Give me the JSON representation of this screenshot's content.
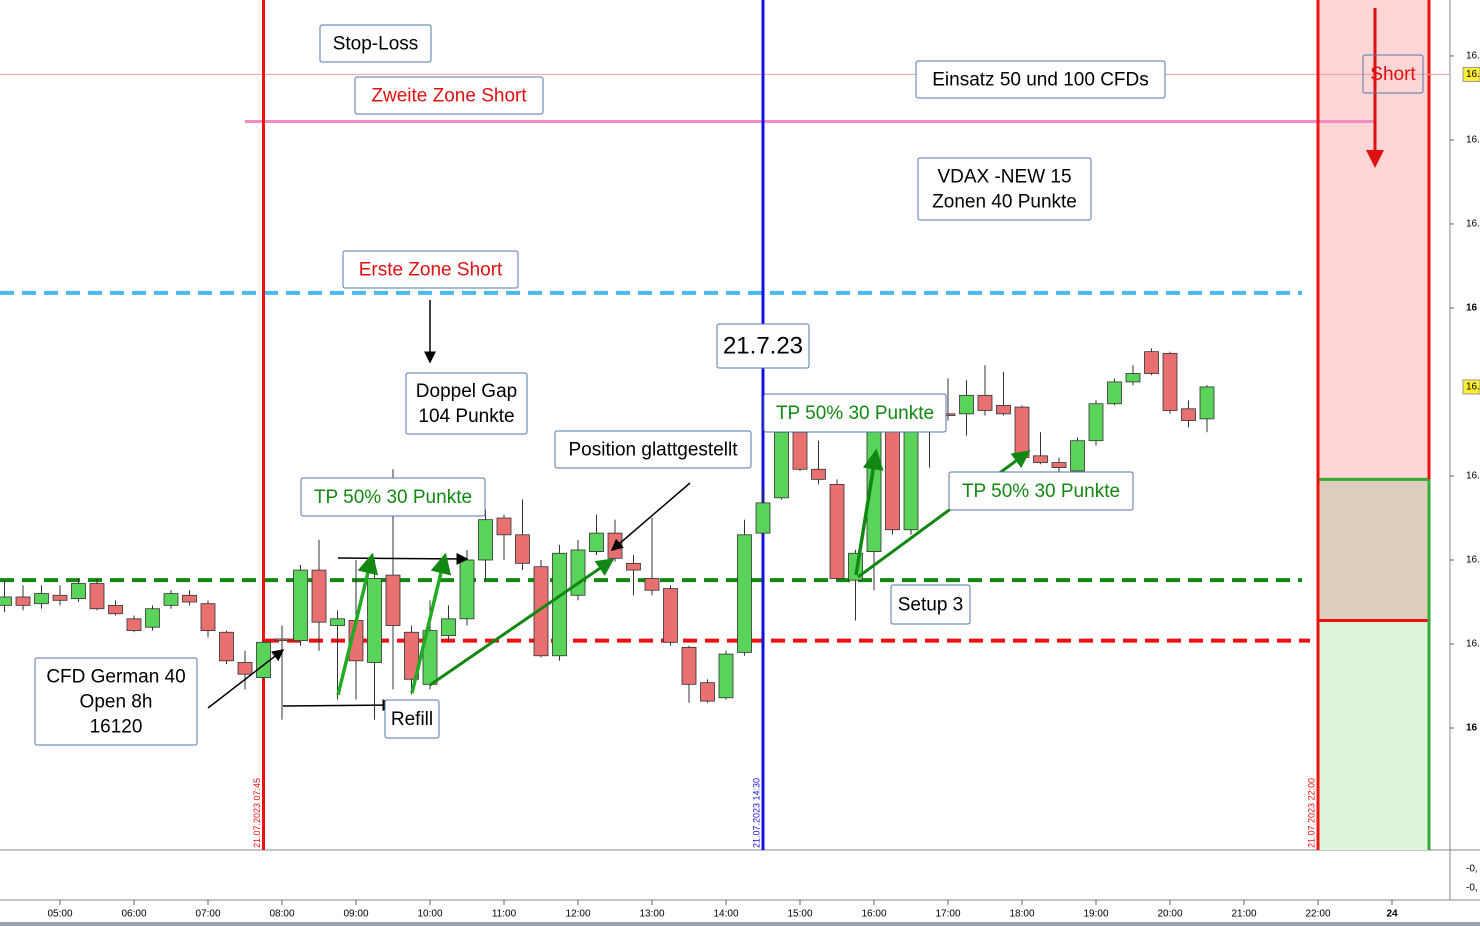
{
  "chart_data": {
    "type": "candlestick",
    "ylim": [
      15977.4,
      16483.3
    ],
    "yticks": [
      {
        "value": 16450,
        "label": "16."
      },
      {
        "value": 16400,
        "label": "16."
      },
      {
        "value": 16350,
        "label": "16."
      },
      {
        "value": 16300,
        "label": "16"
      },
      {
        "value": 16200,
        "label": "16."
      },
      {
        "value": 16150,
        "label": "16."
      },
      {
        "value": 16100,
        "label": "16."
      },
      {
        "value": 16050,
        "label": "16"
      }
    ],
    "price_tags": [
      {
        "value": 16439,
        "label": "16."
      },
      {
        "value": 16253,
        "label": "16."
      }
    ],
    "xlim": [
      4.19,
      24.2
    ],
    "xticks": [
      {
        "value": 5,
        "label": "05:00"
      },
      {
        "value": 6,
        "label": "06:00"
      },
      {
        "value": 7,
        "label": "07:00"
      },
      {
        "value": 8,
        "label": "08:00"
      },
      {
        "value": 9,
        "label": "09:00"
      },
      {
        "value": 10,
        "label": "10:00"
      },
      {
        "value": 11,
        "label": "11:00"
      },
      {
        "value": 12,
        "label": "12:00"
      },
      {
        "value": 13,
        "label": "13:00"
      },
      {
        "value": 14,
        "label": "14:00"
      },
      {
        "value": 15,
        "label": "15:00"
      },
      {
        "value": 16,
        "label": "16:00"
      },
      {
        "value": 17,
        "label": "17:00"
      },
      {
        "value": 18,
        "label": "18:00"
      },
      {
        "value": 19,
        "label": "19:00"
      },
      {
        "value": 20,
        "label": "20:00"
      },
      {
        "value": 21,
        "label": "21:00"
      },
      {
        "value": 22,
        "label": "22:00"
      },
      {
        "value": 23,
        "label": "24"
      }
    ],
    "up_color": "#5ad35a",
    "down_color": "#e87070",
    "x": [
      4.25,
      4.5,
      4.75,
      5,
      5.25,
      5.5,
      5.75,
      6,
      6.25,
      6.5,
      6.75,
      7,
      7.25,
      7.5,
      7.75,
      8,
      8.25,
      8.5,
      8.75,
      9,
      9.25,
      9.5,
      9.75,
      10,
      10.25,
      10.5,
      10.75,
      11,
      11.25,
      11.5,
      11.75,
      12,
      12.25,
      12.5,
      12.75,
      13,
      13.25,
      13.5,
      13.75,
      14,
      14.25,
      14.5,
      14.75,
      15,
      15.25,
      15.5,
      15.75,
      16,
      16.25,
      16.5,
      16.75,
      17,
      17.25,
      17.5,
      17.75,
      18,
      18.25,
      18.5,
      18.75,
      19,
      19.25,
      19.5,
      19.75,
      20,
      20.25,
      20.5
    ],
    "open": [
      16123,
      16128,
      16124,
      16129,
      16127,
      16136,
      16123,
      16115,
      16110,
      16123,
      16129,
      16124,
      16107,
      16089,
      16080,
      16103,
      16102,
      16144,
      16111,
      16114,
      16089,
      16141,
      16107,
      16076,
      16105,
      16115,
      16150,
      16175,
      16165,
      16146,
      16093,
      16129,
      16155,
      16166,
      16148,
      16139,
      16133,
      16098,
      16077,
      16068,
      16095,
      16166,
      16187,
      16226,
      16204,
      16195,
      16138,
      16155,
      16227,
      16168,
      16229,
      16237,
      16237,
      16248,
      16242,
      16241,
      16212,
      16208,
      16203,
      16221,
      16243,
      16256,
      16274,
      16273,
      16240,
      16234
    ],
    "close": [
      16128,
      16123,
      16130,
      16126,
      16136,
      16121,
      16118,
      16108,
      16121,
      16130,
      16125,
      16108,
      16090,
      16082,
      16101,
      16102,
      16144,
      16113,
      16115,
      16090,
      16139,
      16111,
      16079,
      16108,
      16115,
      16150,
      16174,
      16165,
      16148,
      16093,
      16154,
      16156,
      16166,
      16151,
      16144,
      16132,
      16101,
      16076,
      16066,
      16094,
      16165,
      16184,
      16226,
      16204,
      16198,
      16139,
      16154,
      16227,
      16168,
      16227,
      16237,
      16236,
      16248,
      16239,
      16237,
      16211,
      16208,
      16205,
      16221,
      16243,
      16256,
      16261,
      16261,
      16239,
      16233,
      16253
    ],
    "high": [
      16138,
      16135,
      16135,
      16135,
      16139,
      16139,
      16126,
      16117,
      16123,
      16132,
      16132,
      16126,
      16108,
      16096,
      16102,
      16111,
      16147,
      16162,
      16120,
      16150,
      16150,
      16204,
      16111,
      16126,
      16123,
      16156,
      16180,
      16177,
      16186,
      16150,
      16159,
      16162,
      16177,
      16174,
      16153,
      16175,
      16135,
      16099,
      16079,
      16096,
      16174,
      16192,
      16230,
      16233,
      16221,
      16198,
      16156,
      16230,
      16230,
      16233,
      16245,
      16258,
      16257,
      16266,
      16262,
      16242,
      16226,
      16211,
      16223,
      16245,
      16258,
      16266,
      16276,
      16274,
      16245,
      16254
    ],
    "low": [
      16119,
      16120,
      16121,
      16123,
      16125,
      16120,
      16117,
      16107,
      16108,
      16121,
      16123,
      16104,
      16088,
      16073,
      16079,
      16055,
      16099,
      16096,
      16067,
      16067,
      16055,
      16073,
      16070,
      16073,
      16102,
      16111,
      16138,
      16150,
      16144,
      16092,
      16090,
      16126,
      16153,
      16149,
      16129,
      16129,
      16099,
      16065,
      16065,
      16067,
      16093,
      16165,
      16186,
      16203,
      16195,
      16138,
      16114,
      16132,
      16165,
      16165,
      16205,
      16233,
      16224,
      16236,
      16236,
      16209,
      16207,
      16198,
      16202,
      16218,
      16242,
      16254,
      16260,
      16237,
      16229,
      16226
    ],
    "hlines": [
      {
        "value": 16439,
        "color": "#f4a0a0",
        "style": "solid"
      },
      {
        "value": 16411,
        "color": "#f48cc4",
        "style": "solid"
      },
      {
        "value": 16309,
        "color": "#4cb8f0",
        "style": "dashed"
      },
      {
        "value": 16138,
        "color": "#118811",
        "style": "dashed"
      },
      {
        "value": 16102,
        "color": "#ee1111",
        "style": "dashed"
      }
    ],
    "vlines": [
      {
        "x": 7.75,
        "color": "#ee1111",
        "label": "21.07.2023 07:45"
      },
      {
        "x": 14.5,
        "color": "#1111dd",
        "label": "21.07.2023 14:30"
      },
      {
        "x": 22,
        "color": "#ee1111",
        "label": "21.07.2023 22:00"
      }
    ],
    "position": {
      "x0": 22,
      "x1": 23.5,
      "entry": 16198,
      "target": 16114
    },
    "annotations": [
      {
        "lines": [
          "Stop-Loss"
        ],
        "color": "#000000"
      },
      {
        "lines": [
          "Zweite Zone Short"
        ],
        "color": "#e01010"
      },
      {
        "lines": [
          "Einsatz 50 und 100 CFDs"
        ],
        "color": "#000000"
      },
      {
        "lines": [
          "Short"
        ],
        "color": "#e01010"
      },
      {
        "lines": [
          "VDAX -NEW 15",
          "Zonen 40 Punkte"
        ],
        "color": "#000000"
      },
      {
        "lines": [
          "Erste Zone Short"
        ],
        "color": "#e01010"
      },
      {
        "lines": [
          "21.7.23"
        ],
        "color": "#000000"
      },
      {
        "lines": [
          "Doppel Gap",
          "104 Punkte"
        ],
        "color": "#000000"
      },
      {
        "lines": [
          "TP 50% 30 Punkte"
        ],
        "color": "#118811"
      },
      {
        "lines": [
          "Position glattgestellt"
        ],
        "color": "#000000"
      },
      {
        "lines": [
          "TP 50% 30 Punkte"
        ],
        "color": "#118811"
      },
      {
        "lines": [
          "TP 50% 30 Punkte"
        ],
        "color": "#118811"
      },
      {
        "lines": [
          "Setup 3"
        ],
        "color": "#000000"
      },
      {
        "lines": [
          "CFD German 40",
          "Open 8h",
          "16120"
        ],
        "color": "#000000"
      },
      {
        "lines": [
          "Refill"
        ],
        "color": "#000000"
      }
    ],
    "lower_pane_ticks": [
      "-0,",
      "-0,"
    ]
  }
}
